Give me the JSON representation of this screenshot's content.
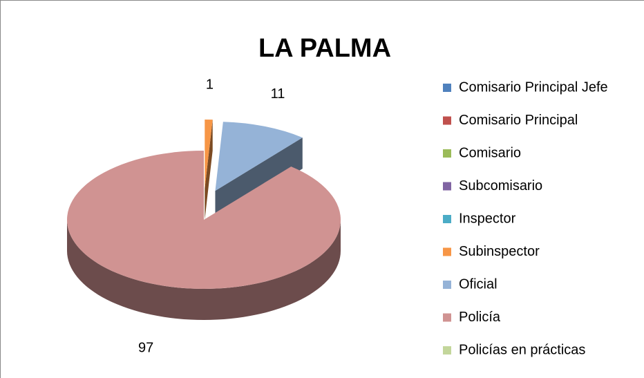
{
  "chart_data": {
    "type": "pie3d",
    "title": "LA PALMA",
    "categories": [
      "Comisario Principal Jefe",
      "Comisario Principal",
      "Comisario",
      "Subcomisario",
      "Inspector",
      "Subinspector",
      "Oficial",
      "Policía",
      "Policías en prácticas"
    ],
    "values": [
      0,
      0,
      0,
      0,
      0,
      1,
      11,
      97,
      0
    ],
    "colors": [
      "#4f81bd",
      "#c0504d",
      "#9bbb59",
      "#8064a2",
      "#4bacc6",
      "#f79646",
      "#95b3d7",
      "#d09392",
      "#c3d69b"
    ],
    "legend": "right"
  }
}
